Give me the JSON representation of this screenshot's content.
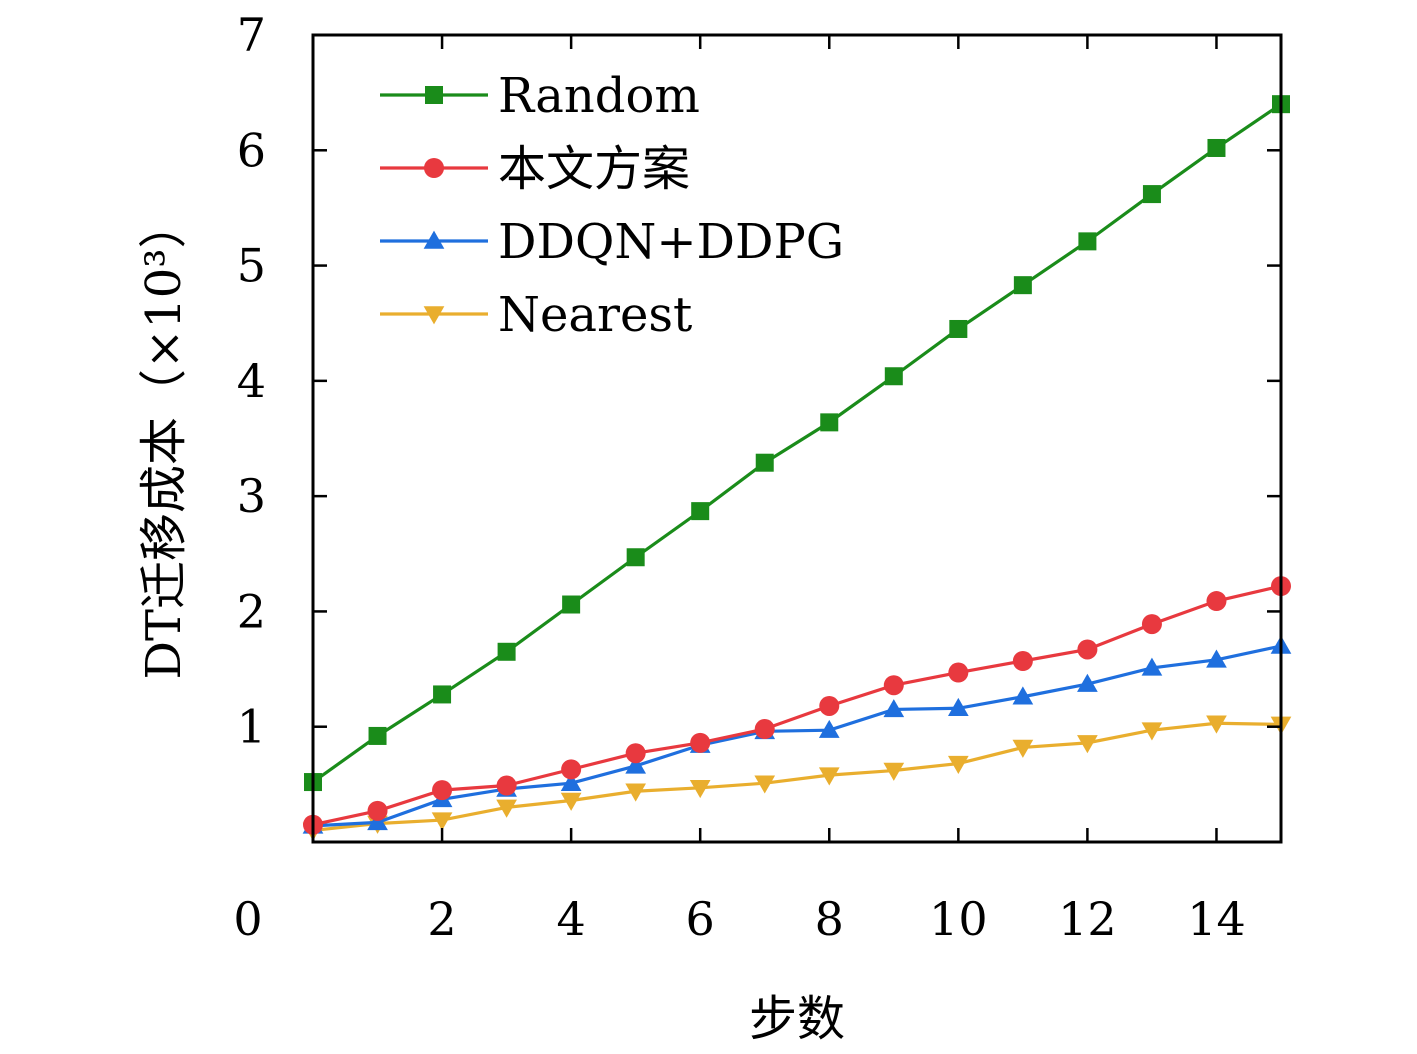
{
  "chart_data": {
    "type": "line",
    "title": "",
    "xlabel": "步数",
    "ylabel": "DT迁移成本（×10³）",
    "xlim": [
      0,
      15
    ],
    "ylim": [
      0,
      7
    ],
    "x_ticks": [
      2,
      4,
      6,
      8,
      10,
      12,
      14
    ],
    "y_ticks": [
      1,
      2,
      3,
      4,
      5,
      6,
      7
    ],
    "origin_label": "0",
    "grid": false,
    "legend_position": "top-left",
    "x": [
      0,
      1,
      2,
      3,
      4,
      5,
      6,
      7,
      8,
      9,
      10,
      11,
      12,
      13,
      14,
      15
    ],
    "series": [
      {
        "name": "Random",
        "color": "#1a8c1a",
        "marker": "square",
        "values": [
          0.52,
          0.92,
          1.28,
          1.65,
          2.06,
          2.47,
          2.87,
          3.29,
          3.64,
          4.04,
          4.45,
          4.83,
          5.21,
          5.62,
          6.02,
          6.4
        ]
      },
      {
        "name": "本文方案",
        "color": "#e8393f",
        "marker": "circle",
        "values": [
          0.15,
          0.27,
          0.45,
          0.49,
          0.63,
          0.77,
          0.86,
          0.98,
          1.18,
          1.36,
          1.47,
          1.57,
          1.67,
          1.89,
          2.09,
          2.22
        ]
      },
      {
        "name": "DDQN+DDPG",
        "color": "#1f6fde",
        "marker": "triangle-up",
        "values": [
          0.14,
          0.17,
          0.37,
          0.46,
          0.51,
          0.66,
          0.84,
          0.96,
          0.97,
          1.15,
          1.16,
          1.26,
          1.37,
          1.51,
          1.58,
          1.7
        ]
      },
      {
        "name": "Nearest",
        "color": "#e9ae2e",
        "marker": "triangle-down",
        "values": [
          0.1,
          0.16,
          0.19,
          0.3,
          0.36,
          0.44,
          0.47,
          0.51,
          0.58,
          0.62,
          0.68,
          0.82,
          0.86,
          0.97,
          1.03,
          1.02
        ]
      }
    ]
  }
}
